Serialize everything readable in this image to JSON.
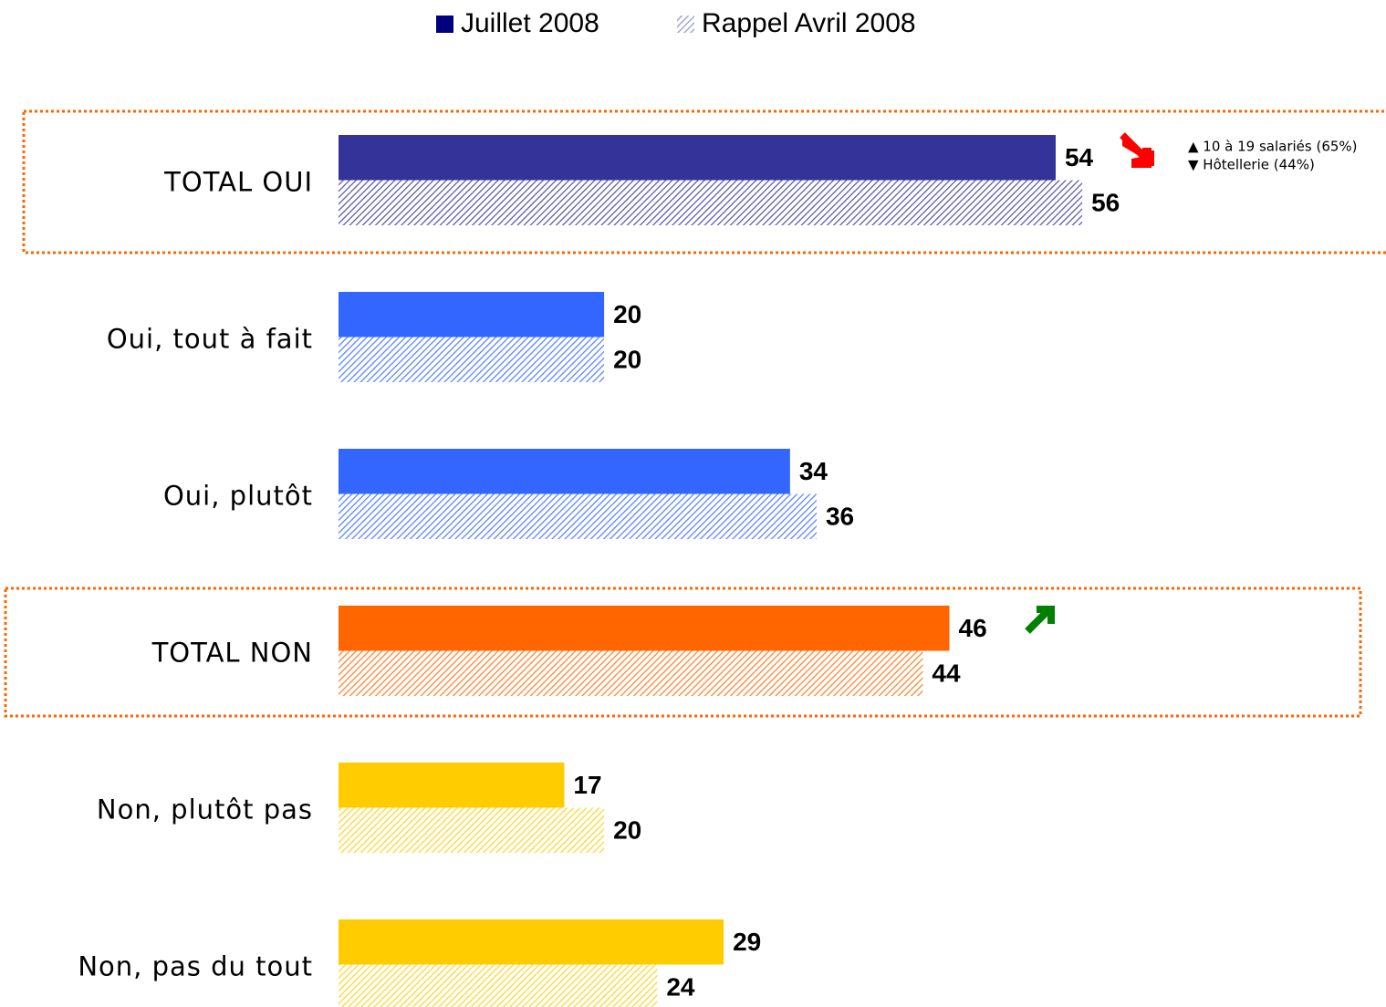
{
  "chart_data": {
    "type": "bar",
    "orientation": "horizontal",
    "categories": [
      "TOTAL OUI",
      "Oui, tout à fait",
      "Oui, plutôt",
      "TOTAL NON",
      "Non, plutôt pas",
      "Non, pas du tout"
    ],
    "category_colors": [
      "#333399",
      "#3366ff",
      "#3366ff",
      "#ff6600",
      "#ffcc00",
      "#ffcc00"
    ],
    "series": [
      {
        "name": "Juillet 2008",
        "color": "#000080",
        "pattern": "solid",
        "values": [
          54,
          20,
          34,
          46,
          17,
          29
        ]
      },
      {
        "name": "Rappel Avril 2008",
        "color": "#8080c0",
        "pattern": "hatched",
        "values": [
          56,
          20,
          36,
          44,
          20,
          24
        ]
      }
    ],
    "annotations": [
      "▲ 10 à 19 salariés (65%)",
      "▼ Hôtellerie (44%)"
    ],
    "legend": "top"
  }
}
